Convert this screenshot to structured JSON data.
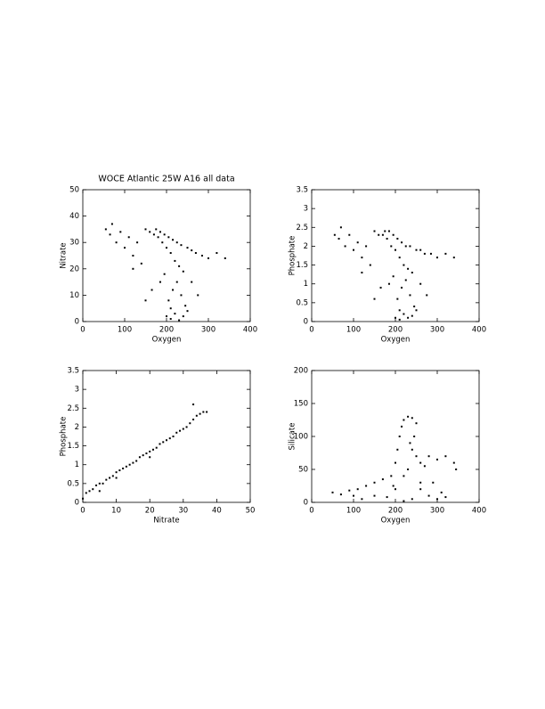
{
  "chart_data": [
    {
      "type": "scatter",
      "title": "WOCE Atlantic 25W A16 all data",
      "xlabel": "Oxygen",
      "ylabel": "Nitrate",
      "color": "#000000",
      "xlim": [
        0,
        400
      ],
      "ylim": [
        0,
        50
      ],
      "xticks": [
        0,
        100,
        200,
        300,
        400
      ],
      "yticks": [
        0,
        10,
        20,
        30,
        40,
        50
      ],
      "x": [
        55,
        65,
        70,
        80,
        90,
        100,
        110,
        120,
        130,
        140,
        150,
        160,
        170,
        180,
        190,
        200,
        210,
        220,
        230,
        240,
        175,
        185,
        195,
        205,
        215,
        225,
        235,
        250,
        260,
        270,
        285,
        300,
        320,
        340,
        200,
        210,
        220,
        230,
        240,
        250,
        205,
        215,
        225,
        235,
        195,
        185,
        165,
        150,
        120,
        260,
        275,
        210,
        245
      ],
      "values": [
        35,
        33,
        37,
        30,
        34,
        28,
        32,
        25,
        30,
        22,
        35,
        34,
        33,
        32,
        30,
        28,
        26,
        23,
        21,
        19,
        35,
        34,
        33,
        32,
        31,
        30,
        29,
        28,
        27,
        26,
        25,
        24,
        26,
        24,
        2,
        1,
        3,
        0.5,
        2,
        4,
        8,
        12,
        15,
        10,
        18,
        15,
        12,
        8,
        20,
        15,
        10,
        5,
        6
      ]
    },
    {
      "type": "scatter",
      "xlabel": "Oxygen",
      "ylabel": "Phosphate",
      "color": "#000000",
      "xlim": [
        0,
        400
      ],
      "ylim": [
        0,
        3.5
      ],
      "xticks": [
        0,
        100,
        200,
        300,
        400
      ],
      "yticks": [
        0,
        0.5,
        1,
        1.5,
        2,
        2.5,
        3,
        3.5
      ],
      "x": [
        55,
        65,
        70,
        80,
        90,
        100,
        110,
        120,
        130,
        140,
        150,
        160,
        170,
        180,
        190,
        200,
        210,
        220,
        230,
        240,
        175,
        185,
        195,
        205,
        215,
        225,
        235,
        250,
        260,
        270,
        285,
        300,
        320,
        340,
        200,
        210,
        220,
        230,
        240,
        250,
        205,
        215,
        225,
        235,
        195,
        185,
        165,
        150,
        120,
        260,
        275,
        210,
        245
      ],
      "values": [
        2.3,
        2.2,
        2.5,
        2,
        2.3,
        1.9,
        2.1,
        1.7,
        2,
        1.5,
        2.4,
        2.3,
        2.3,
        2.2,
        2,
        1.9,
        1.7,
        1.5,
        1.4,
        1.3,
        2.4,
        2.4,
        2.3,
        2.2,
        2.1,
        2,
        2,
        1.9,
        1.9,
        1.8,
        1.8,
        1.7,
        1.8,
        1.7,
        0.1,
        0.05,
        0.2,
        0.1,
        0.15,
        0.3,
        0.6,
        0.9,
        1.1,
        0.7,
        1.2,
        1,
        0.9,
        0.6,
        1.3,
        1,
        0.7,
        0.3,
        0.4
      ]
    },
    {
      "type": "scatter",
      "xlabel": "Nitrate",
      "ylabel": "Phosphate",
      "color": "#000000",
      "xlim": [
        0,
        50
      ],
      "ylim": [
        0,
        3.5
      ],
      "xticks": [
        0,
        10,
        20,
        30,
        40,
        50
      ],
      "yticks": [
        0,
        0.5,
        1,
        1.5,
        2,
        2.5,
        3,
        3.5
      ],
      "x": [
        0,
        1,
        2,
        3,
        4,
        5,
        6,
        7,
        8,
        9,
        10,
        11,
        12,
        13,
        14,
        15,
        16,
        17,
        18,
        19,
        20,
        21,
        22,
        23,
        24,
        25,
        26,
        27,
        28,
        29,
        30,
        31,
        32,
        33,
        34,
        35,
        36,
        37,
        33,
        20,
        10,
        5
      ],
      "values": [
        0.1,
        0.25,
        0.3,
        0.35,
        0.45,
        0.5,
        0.5,
        0.6,
        0.65,
        0.7,
        0.8,
        0.85,
        0.9,
        0.95,
        1,
        1.05,
        1.1,
        1.2,
        1.25,
        1.3,
        1.35,
        1.4,
        1.45,
        1.55,
        1.6,
        1.65,
        1.7,
        1.75,
        1.85,
        1.9,
        1.95,
        2,
        2.1,
        2.2,
        2.3,
        2.35,
        2.4,
        2.4,
        2.6,
        1.2,
        0.65,
        0.3
      ]
    },
    {
      "type": "scatter",
      "xlabel": "Oxygen",
      "ylabel": "Silicate",
      "color": "#000000",
      "xlim": [
        0,
        400
      ],
      "ylim": [
        0,
        200
      ],
      "xticks": [
        0,
        100,
        200,
        300,
        400
      ],
      "yticks": [
        0,
        50,
        100,
        150,
        200
      ],
      "x": [
        50,
        70,
        90,
        110,
        130,
        150,
        170,
        190,
        200,
        205,
        210,
        215,
        220,
        230,
        240,
        250,
        245,
        240,
        250,
        260,
        270,
        280,
        300,
        320,
        340,
        345,
        230,
        220,
        260,
        280,
        300,
        320,
        200,
        180,
        150,
        120,
        100,
        220,
        240,
        260,
        290,
        310,
        195,
        235
      ],
      "values": [
        15,
        12,
        18,
        20,
        25,
        30,
        35,
        40,
        60,
        80,
        100,
        115,
        125,
        130,
        128,
        120,
        100,
        80,
        70,
        60,
        55,
        70,
        65,
        70,
        60,
        50,
        50,
        40,
        20,
        10,
        5,
        8,
        20,
        8,
        10,
        5,
        10,
        2,
        5,
        30,
        30,
        15,
        25,
        90
      ]
    }
  ]
}
